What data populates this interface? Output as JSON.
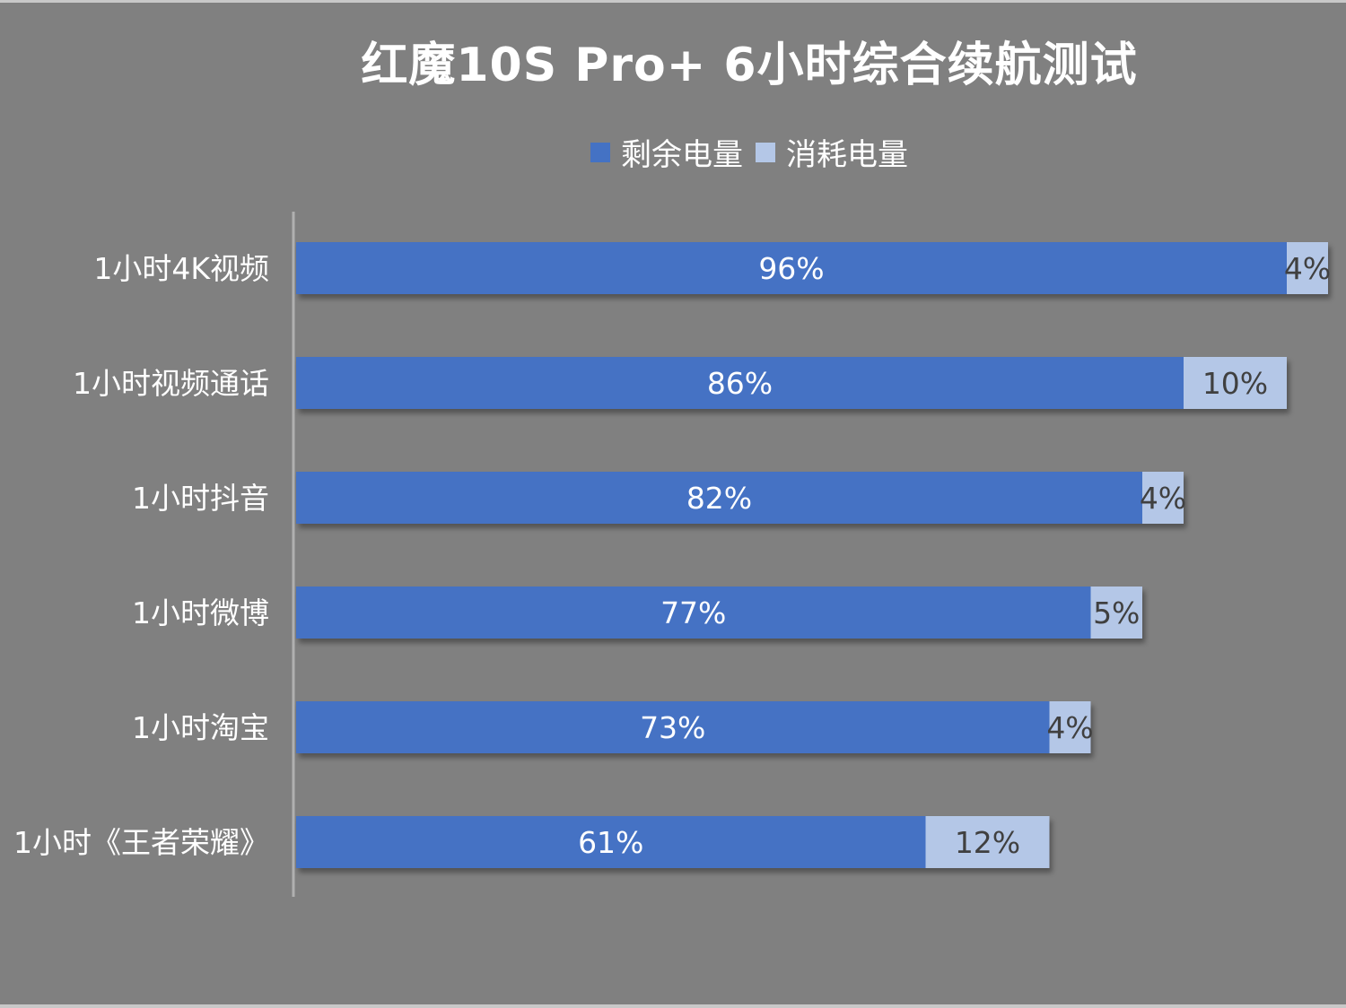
{
  "chart_data": {
    "type": "bar",
    "orientation": "horizontal",
    "stacked": true,
    "title": "红魔10S Pro+ 6小时综合续航测试",
    "legend_position": "top",
    "categories": [
      "1小时4K视频",
      "1小时视频通话",
      "1小时抖音",
      "1小时微博",
      "1小时淘宝",
      "1小时《王者荣耀》"
    ],
    "series": [
      {
        "name": "剩余电量",
        "color": "#4472c4",
        "label_color": "#ffffff",
        "values": [
          96,
          86,
          82,
          77,
          73,
          61
        ],
        "labels": [
          "96%",
          "86%",
          "82%",
          "77%",
          "73%",
          "61%"
        ]
      },
      {
        "name": "消耗电量",
        "color": "#b4c7e7",
        "label_color": "#404040",
        "values": [
          4,
          10,
          4,
          5,
          4,
          12
        ],
        "labels": [
          "4%",
          "10%",
          "4%",
          "5%",
          "4%",
          "12%"
        ]
      }
    ],
    "xlim": [
      0,
      100
    ],
    "grid": false
  }
}
